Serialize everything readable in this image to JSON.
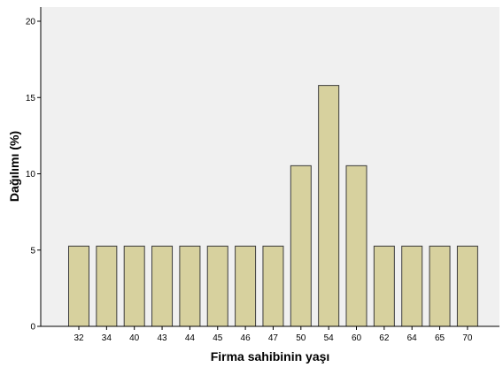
{
  "chart_data": {
    "type": "bar",
    "categories": [
      "32",
      "34",
      "40",
      "43",
      "44",
      "45",
      "46",
      "47",
      "50",
      "54",
      "60",
      "62",
      "64",
      "65",
      "70"
    ],
    "values": [
      5.26,
      5.26,
      5.26,
      5.26,
      5.26,
      5.26,
      5.26,
      5.26,
      10.53,
      15.79,
      10.53,
      5.26,
      5.26,
      5.26,
      5.26
    ],
    "xlabel": "Firma sahibinin yaşı",
    "ylabel": "Dağılımı (%)",
    "ylim": [
      0,
      20
    ],
    "yticks": [
      "0",
      "5",
      "10",
      "15",
      "20"
    ],
    "grid": false,
    "colors": {
      "plot_background": "#f0f0f0",
      "bar_fill": "#d7d19e",
      "bar_stroke": "#3c3c3c",
      "axis": "#000000"
    }
  }
}
